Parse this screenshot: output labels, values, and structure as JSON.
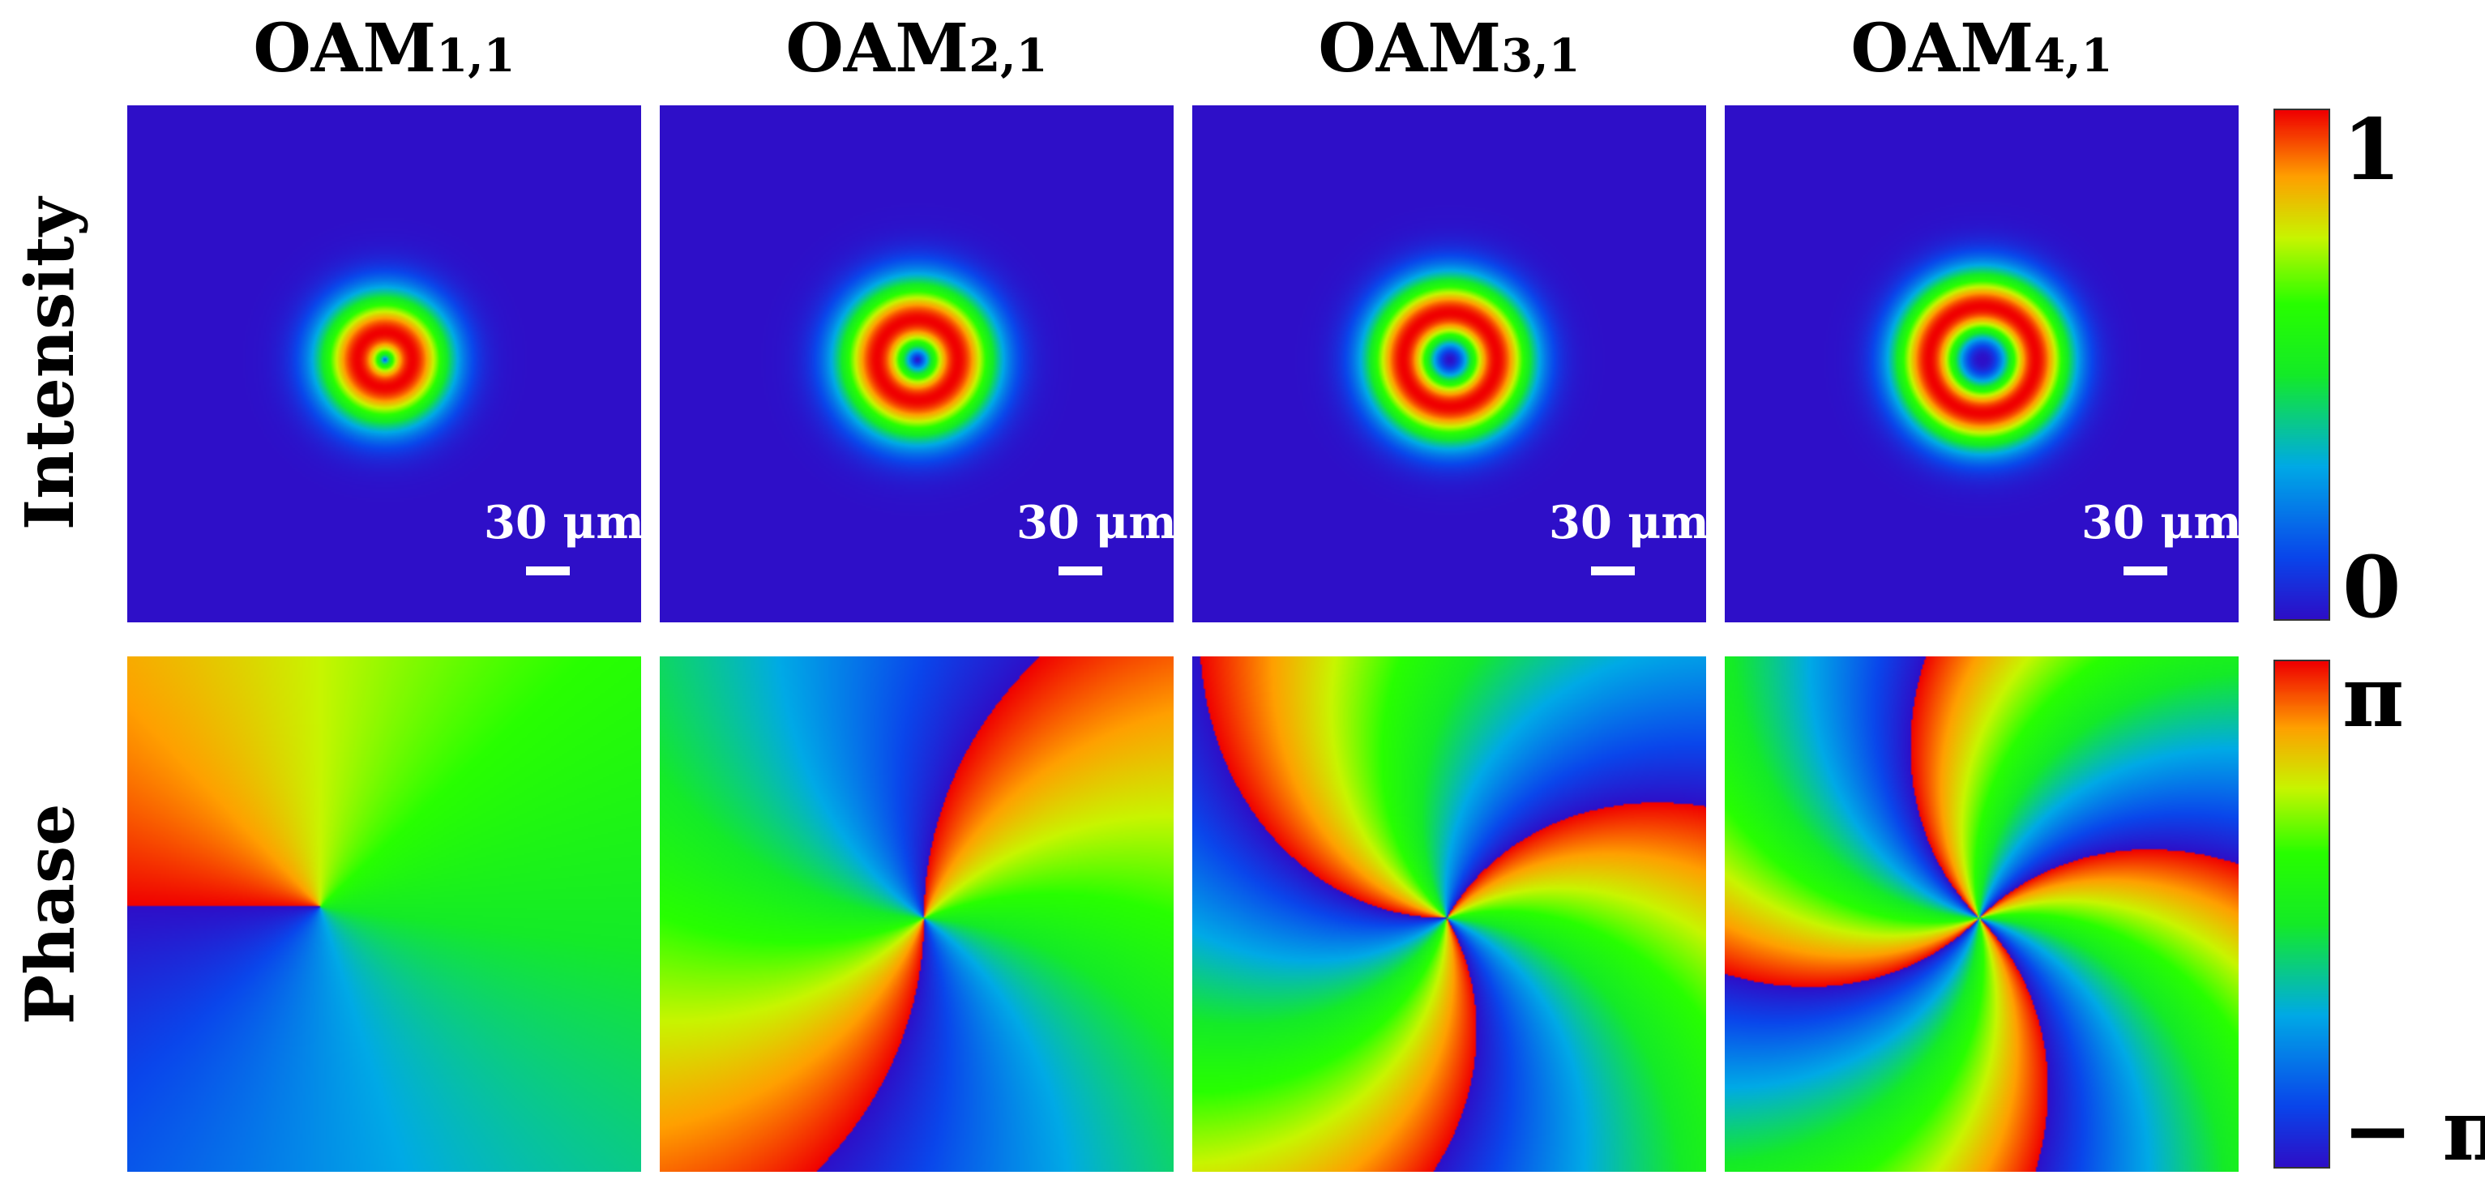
{
  "columns": [
    {
      "base": "OAM",
      "sub": "1,1",
      "l": 1
    },
    {
      "base": "OAM",
      "sub": "2,1",
      "l": 2
    },
    {
      "base": "OAM",
      "sub": "3,1",
      "l": 3
    },
    {
      "base": "OAM",
      "sub": "4,1",
      "l": 4
    }
  ],
  "rows": {
    "intensity": "Intensity",
    "phase": "Phase"
  },
  "scale_bar": "30 μm",
  "colorbars": {
    "intensity": {
      "max": "1",
      "min": "0"
    },
    "phase": {
      "max": "π",
      "min": "− π"
    }
  }
}
